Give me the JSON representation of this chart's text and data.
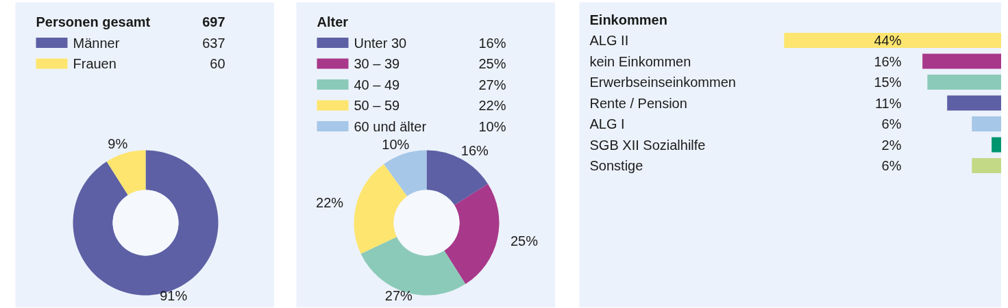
{
  "chart_data": [
    {
      "type": "donut",
      "title": "Personen gesamt",
      "annotations": [
        "697",
        "637",
        "60"
      ],
      "categories": [
        "Männer",
        "Frauen"
      ],
      "values": [
        91,
        9
      ],
      "value_labels": [
        "91%",
        "9%"
      ],
      "colors": [
        "#5d60a4",
        "#fde56f"
      ],
      "legend": "top left"
    },
    {
      "type": "donut",
      "title": "Alter",
      "categories": [
        "Unter 30",
        "30 – 39",
        "40 – 49",
        "50 – 59",
        "60 und älter"
      ],
      "values": [
        16,
        25,
        27,
        22,
        10
      ],
      "value_labels": [
        "16%",
        "25%",
        "27%",
        "22%",
        "10%"
      ],
      "colors": [
        "#5d60a4",
        "#a8388a",
        "#8bcab9",
        "#fde56f",
        "#a6c7e8"
      ],
      "legend": "top left"
    },
    {
      "type": "bar",
      "orientation": "horizontal",
      "title": "Einkommen",
      "categories": [
        "ALG II",
        "kein Einkommen",
        "Erwerbseinseinkommen",
        "Rente / Pension",
        "ALG I",
        "SGB XII Sozialhilfe",
        "Sonstige"
      ],
      "values": [
        44,
        16,
        15,
        11,
        6,
        2,
        6
      ],
      "value_labels": [
        "44%",
        "16%",
        "15%",
        "11%",
        "6%",
        "2%",
        "6%"
      ],
      "colors": [
        "#fde56f",
        "#a8388a",
        "#8bcab9",
        "#5d60a4",
        "#a6c7e8",
        "#00956f",
        "#c4d985"
      ]
    }
  ]
}
